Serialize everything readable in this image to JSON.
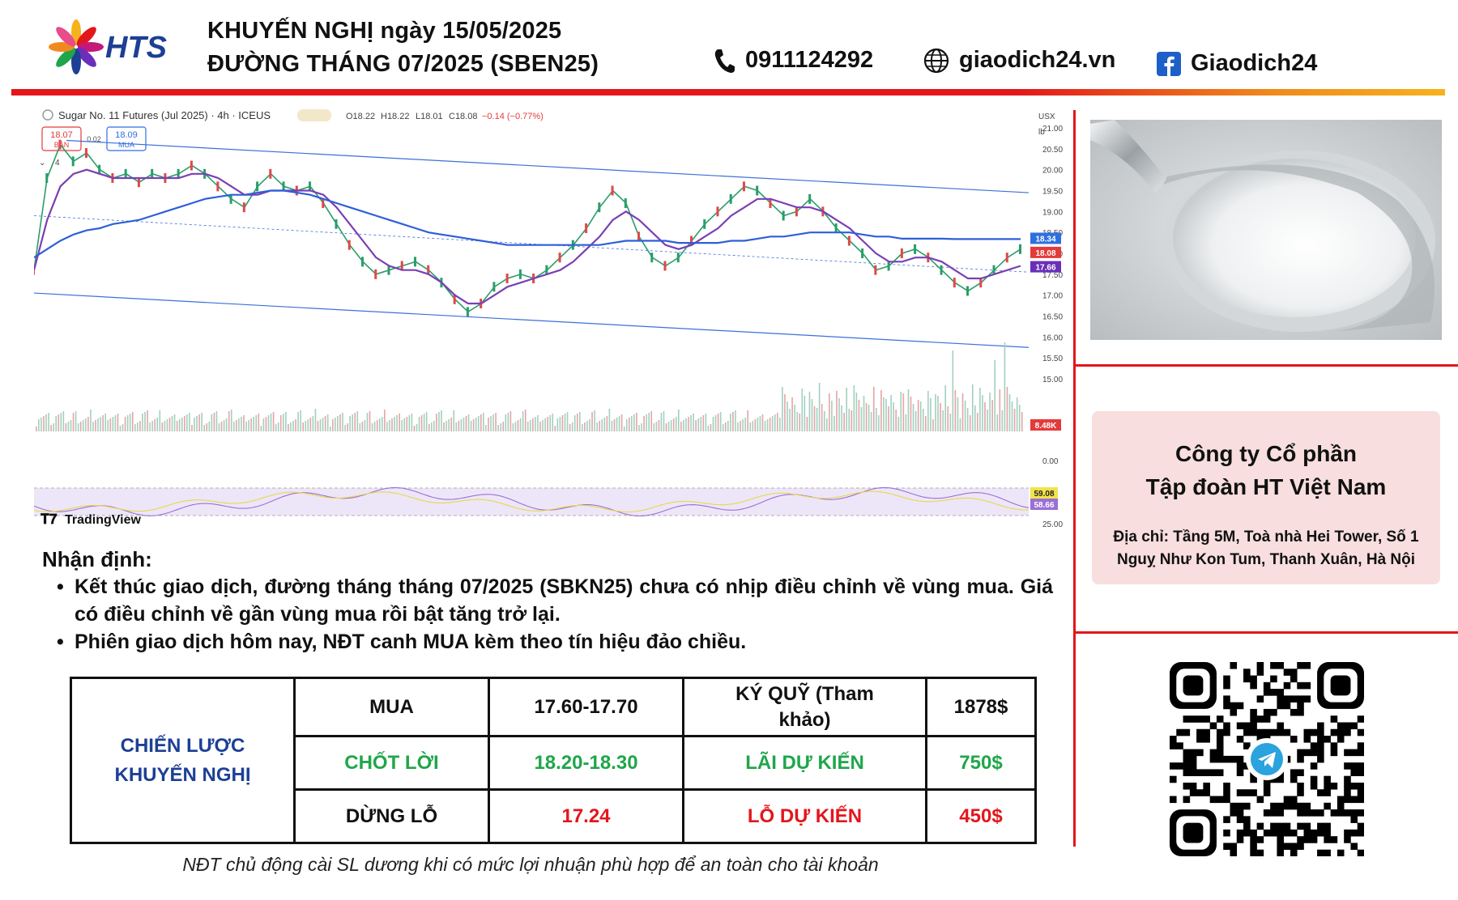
{
  "header": {
    "brand": "HTS",
    "title_line1": "KHUYẾN NGHỊ ngày 15/05/2025",
    "title_line2": "ĐƯỜNG THÁNG 07/2025 (SBEN25)",
    "phone": "0911124292",
    "website": "giaodich24.vn",
    "facebook": "Giaodich24",
    "colors": {
      "accent_red": "#e3161c",
      "accent_orange": "#f6b21c",
      "brand_blue": "#1d3f95"
    }
  },
  "chart_data": {
    "type": "line",
    "symbol_label": "Sugar No. 11 Futures (Jul 2025) · 4h · ICEUS",
    "ohlc_text": {
      "o": "O18.22",
      "h": "H18.22",
      "l": "L18.01",
      "c": "C18.08",
      "chg": "−0.14 (−0.77%)"
    },
    "sell_box": {
      "value": "18.07",
      "label": "BÁN"
    },
    "spread": "0.02",
    "buy_box": {
      "value": "18.09",
      "label": "MUA"
    },
    "indicator_count": "4",
    "currency": "USX",
    "unit": "lb",
    "y_ticks": [
      "21.00",
      "20.50",
      "20.00",
      "19.50",
      "19.00",
      "18.50",
      "18.00",
      "17.50",
      "17.00",
      "16.50",
      "16.00",
      "15.50",
      "15.00"
    ],
    "ylim": [
      15.0,
      21.0
    ],
    "price_labels": [
      {
        "value": "18.34",
        "color": "#2e6fe0"
      },
      {
        "value": "18.08",
        "color": "#e33b3b"
      },
      {
        "value": "17.66",
        "color": "#6a2fb8"
      },
      {
        "value": "8.48K",
        "color": "#e33b3b"
      }
    ],
    "volume_tick": "0.00",
    "rsi_labels": [
      {
        "value": "59.08",
        "color": "#f2e34a"
      },
      {
        "value": "58.66",
        "color": "#9b6fd6"
      }
    ],
    "rsi_bottom_tick": "25.00",
    "watermark": "TradingView",
    "series": [
      {
        "role": "price",
        "color": "#2a9d6a",
        "values": [
          17.6,
          19.8,
          20.6,
          20.2,
          20.4,
          20.0,
          19.8,
          19.9,
          19.7,
          19.9,
          19.8,
          19.9,
          20.1,
          19.9,
          19.6,
          19.3,
          19.1,
          19.6,
          19.9,
          19.6,
          19.5,
          19.6,
          19.2,
          18.7,
          18.2,
          17.8,
          17.5,
          17.6,
          17.7,
          17.8,
          17.6,
          17.3,
          16.9,
          16.6,
          16.8,
          17.2,
          17.4,
          17.5,
          17.4,
          17.6,
          17.9,
          18.2,
          18.6,
          19.1,
          19.5,
          19.2,
          18.4,
          17.9,
          17.7,
          17.9,
          18.3,
          18.7,
          19.0,
          19.3,
          19.6,
          19.5,
          19.2,
          18.9,
          19.0,
          19.3,
          19.0,
          18.6,
          18.3,
          18.0,
          17.6,
          17.7,
          18.0,
          18.1,
          17.9,
          17.6,
          17.3,
          17.1,
          17.3,
          17.6,
          17.9,
          18.1
        ]
      },
      {
        "role": "ma_fast",
        "color": "#7a3fb3",
        "values": [
          17.6,
          18.8,
          19.6,
          19.9,
          20.0,
          19.9,
          19.8,
          19.8,
          19.8,
          19.8,
          19.8,
          19.8,
          19.9,
          19.9,
          19.8,
          19.6,
          19.4,
          19.4,
          19.5,
          19.5,
          19.5,
          19.5,
          19.4,
          19.1,
          18.7,
          18.3,
          17.9,
          17.7,
          17.6,
          17.6,
          17.5,
          17.3,
          17.0,
          16.8,
          16.8,
          17.0,
          17.2,
          17.3,
          17.4,
          17.5,
          17.6,
          17.8,
          18.1,
          18.4,
          18.8,
          19.0,
          18.8,
          18.5,
          18.2,
          18.1,
          18.2,
          18.4,
          18.6,
          18.9,
          19.1,
          19.3,
          19.3,
          19.2,
          19.1,
          19.1,
          19.0,
          18.8,
          18.6,
          18.3,
          18.0,
          17.8,
          17.8,
          17.9,
          17.9,
          17.8,
          17.6,
          17.4,
          17.4,
          17.5,
          17.6,
          17.7
        ]
      },
      {
        "role": "ma_slow",
        "color": "#2e5fd8",
        "values": [
          17.9,
          18.1,
          18.3,
          18.45,
          18.55,
          18.6,
          18.7,
          18.75,
          18.8,
          18.9,
          19.0,
          19.1,
          19.2,
          19.3,
          19.35,
          19.4,
          19.4,
          19.45,
          19.5,
          19.5,
          19.45,
          19.4,
          19.3,
          19.2,
          19.1,
          19.0,
          18.9,
          18.8,
          18.7,
          18.6,
          18.5,
          18.45,
          18.4,
          18.35,
          18.3,
          18.25,
          18.2,
          18.2,
          18.2,
          18.2,
          18.2,
          18.2,
          18.2,
          18.2,
          18.25,
          18.3,
          18.3,
          18.3,
          18.3,
          18.25,
          18.25,
          18.25,
          18.25,
          18.3,
          18.3,
          18.35,
          18.4,
          18.4,
          18.45,
          18.5,
          18.5,
          18.5,
          18.5,
          18.45,
          18.4,
          18.4,
          18.35,
          18.35,
          18.35,
          18.35,
          18.34,
          18.34,
          18.34,
          18.34,
          18.34,
          18.34
        ]
      }
    ],
    "grid": false,
    "legend": "none"
  },
  "analysis": {
    "heading": "Nhận định:",
    "bullets": [
      "Kết thúc giao dịch, đường tháng tháng 07/2025 (SBKN25) chưa có nhịp điều chỉnh về vùng mua. Giá có điều chỉnh về gần vùng mua rồi bật tăng trở lại.",
      "Phiên giao dịch hôm nay, NĐT canh MUA kèm theo tín hiệu đảo chiều."
    ]
  },
  "strategy": {
    "title": "CHIẾN LƯỢC KHUYẾN NGHỊ",
    "rows": [
      {
        "c1": "MUA",
        "c2": "17.60-17.70",
        "c3": "KÝ QUỸ (Tham khảo)",
        "c4": "1878$",
        "color": "#111111"
      },
      {
        "c1": "CHỐT LỜI",
        "c2": "18.20-18.30",
        "c3": "LÃI DỰ KIẾN",
        "c4": "750$",
        "color": "#1fa64a"
      },
      {
        "c1": "DỪNG LỖ",
        "c2": "17.24",
        "c3": "LỖ DỰ KIẾN",
        "c4": "450$",
        "color": "#e3161c",
        "c1_color": "#111111"
      }
    ]
  },
  "footnote": "NĐT chủ động cài SL dương khi có mức lợi nhuận phù hợp để an toàn cho tài khoản",
  "company": {
    "name_line1": "Công ty Cổ phần",
    "name_line2": "Tập đoàn HT Việt Nam",
    "address": "Địa chỉ: Tầng 5M, Toà nhà Hei Tower, Số 1 Nguỵ Như Kon Tum, Thanh Xuân, Hà Nội"
  }
}
